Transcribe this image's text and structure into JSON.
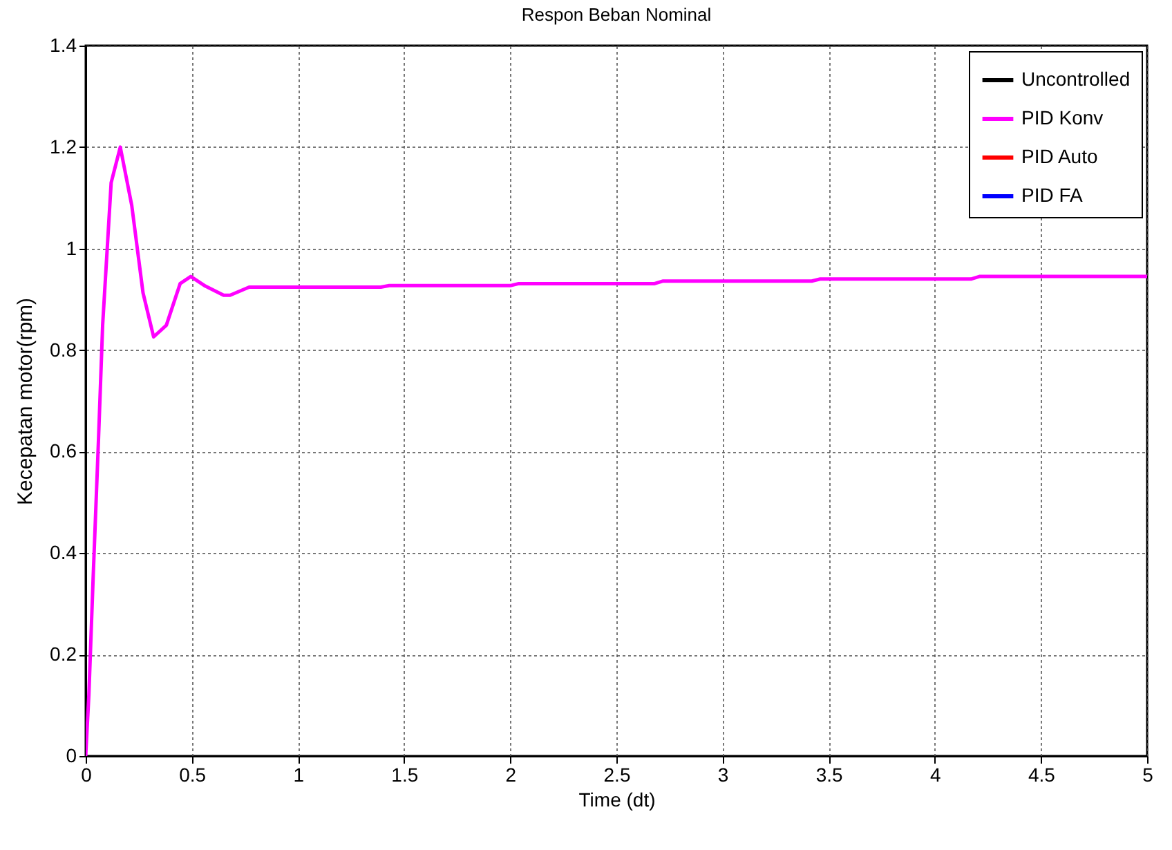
{
  "chart_data": {
    "type": "line",
    "title": "Respon Beban Nominal",
    "xlabel": "Time (dt)",
    "ylabel": "Kecepatan motor(rpm)",
    "x": [
      0,
      0.015,
      0.035,
      0.06,
      0.08,
      0.12,
      0.163,
      0.217,
      0.27,
      0.32,
      0.38,
      0.445,
      0.495,
      0.564,
      0.65,
      0.68,
      0.77,
      1.39,
      1.43,
      2.0,
      2.04,
      2.68,
      2.72,
      3.42,
      3.46,
      4.17,
      4.21,
      5
    ],
    "series": [
      {
        "name": "Uncontrolled",
        "color": "#000000",
        "values": [
          null,
          null,
          null,
          null,
          null,
          null,
          null,
          null,
          null,
          null,
          null,
          null,
          null,
          null,
          null,
          null,
          null,
          null,
          null,
          null,
          null,
          null,
          null,
          null,
          null,
          null,
          null,
          null
        ]
      },
      {
        "name": "PID Konv",
        "color": "#ff00ff",
        "values": [
          0,
          0.12,
          0.35,
          0.62,
          0.85,
          1.13,
          1.2,
          1.085,
          0.913,
          0.826,
          0.849,
          0.931,
          0.945,
          0.926,
          0.908,
          0.908,
          0.924,
          0.924,
          0.927,
          0.927,
          0.931,
          0.931,
          0.936,
          0.936,
          0.94,
          0.94,
          0.945,
          0.945
        ]
      },
      {
        "name": "PID Auto",
        "color": "#ff0000",
        "values": [
          null,
          null,
          null,
          null,
          null,
          null,
          null,
          null,
          null,
          null,
          null,
          null,
          null,
          null,
          null,
          null,
          null,
          null,
          null,
          null,
          null,
          null,
          null,
          null,
          null,
          null,
          null,
          null
        ]
      },
      {
        "name": "PID FA",
        "color": "#0000ff",
        "values": [
          null,
          null,
          null,
          null,
          null,
          null,
          null,
          null,
          null,
          null,
          null,
          null,
          null,
          null,
          null,
          null,
          null,
          null,
          null,
          null,
          null,
          null,
          null,
          null,
          null,
          null,
          null,
          null
        ]
      }
    ],
    "xlim": [
      0,
      5
    ],
    "xticks": [
      0,
      0.5,
      1,
      1.5,
      2,
      2.5,
      3,
      3.5,
      4,
      4.5,
      5
    ],
    "ylim": [
      0,
      1.4
    ],
    "yticks": [
      0,
      0.2,
      0.4,
      0.6,
      0.8,
      1,
      1.2,
      1.4
    ],
    "grid": true,
    "legend": "top right",
    "line_style": "solid",
    "marker": "none"
  }
}
